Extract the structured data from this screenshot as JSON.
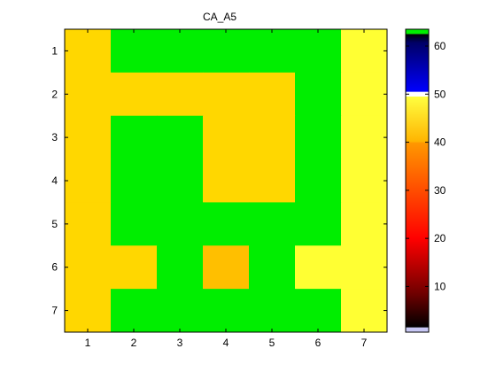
{
  "chart_data": {
    "type": "heatmap",
    "title": "CA_A5",
    "x_ticks": [
      "1",
      "2",
      "3",
      "4",
      "5",
      "6",
      "7"
    ],
    "y_ticks": [
      "1",
      "2",
      "3",
      "4",
      "5",
      "6",
      "7"
    ],
    "matrix": [
      [
        42,
        63,
        63,
        63,
        63,
        63,
        47
      ],
      [
        42,
        42,
        42,
        42,
        42,
        63,
        47
      ],
      [
        42,
        63,
        63,
        42,
        42,
        63,
        47
      ],
      [
        42,
        63,
        63,
        42,
        42,
        63,
        47
      ],
      [
        42,
        63,
        63,
        63,
        63,
        63,
        47
      ],
      [
        42,
        42,
        63,
        39,
        63,
        47,
        47
      ],
      [
        42,
        63,
        63,
        63,
        63,
        63,
        47
      ]
    ],
    "colorbar": {
      "ticks": [
        "10",
        "20",
        "30",
        "40",
        "50",
        "60"
      ],
      "ylim": [
        0.5,
        63.5
      ],
      "colormap": [
        {
          "from": 0.5,
          "to": 1.5,
          "color": "#c8c8f5"
        },
        {
          "from": 1.5,
          "to": 7.5,
          "color": "#000000"
        },
        {
          "from": 7.5,
          "to": 20,
          "color": "#6e0000"
        },
        {
          "from": 20,
          "to": 30,
          "color": "#ff0000"
        },
        {
          "from": 30,
          "to": 40,
          "color": "#ff8000"
        },
        {
          "from": 40,
          "to": 46,
          "color": "#ffd700"
        },
        {
          "from": 46,
          "to": 49.5,
          "color": "#ffff33"
        },
        {
          "from": 49.5,
          "to": 50.5,
          "color": "#ffffff"
        },
        {
          "from": 50.5,
          "to": 62.5,
          "color": "#0000ff"
        },
        {
          "from": 62.5,
          "to": 63.5,
          "color": "#00ee00"
        }
      ]
    },
    "cell_colors": {
      "39": "#ffbf00",
      "42": "#ffd700",
      "47": "#ffff33",
      "63": "#00ee00"
    }
  }
}
